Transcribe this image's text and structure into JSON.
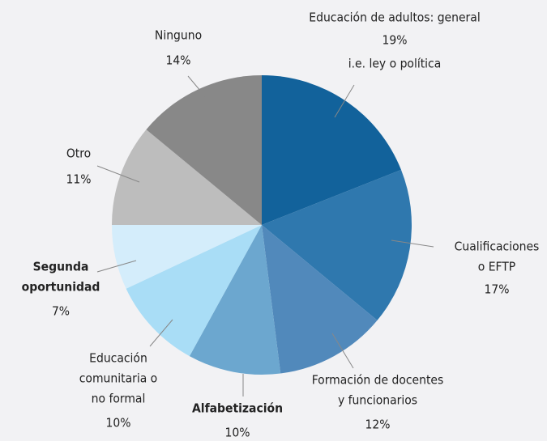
{
  "chart_data": {
    "type": "pie",
    "categories": [
      [
        "Educación de adultos: general",
        "i.e. ley o política"
      ],
      [
        "Cualificaciones",
        "o EFTP"
      ],
      [
        "Formación de docentes",
        "y funcionarios"
      ],
      [
        "Alfabetización"
      ],
      [
        "Educación",
        "comunitaria o",
        "no formal"
      ],
      [
        "Segunda",
        "oportunidad"
      ],
      [
        "Otro"
      ],
      [
        "Ninguno"
      ]
    ],
    "values": [
      19,
      17,
      12,
      10,
      10,
      7,
      11,
      14
    ],
    "value_labels": [
      "19%",
      "17%",
      "12%",
      "10%",
      "10%",
      "7%",
      "11%",
      "14%"
    ],
    "colors": [
      "#12629b",
      "#2f78ae",
      "#5189bb",
      "#6ca7cf",
      "#a9ddf6",
      "#d4edfb",
      "#bdbdbd",
      "#888888"
    ],
    "bold": [
      3,
      5
    ]
  }
}
